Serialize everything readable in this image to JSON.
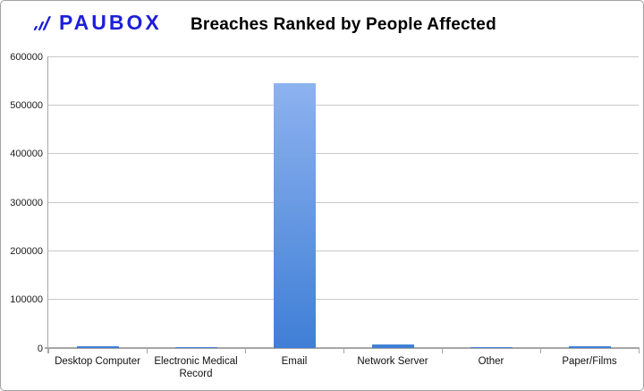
{
  "brand": {
    "logo_text": "PAUBOX",
    "logo_color": "#1c1fd9"
  },
  "chart_data": {
    "type": "bar",
    "title": "Breaches Ranked by People Affected",
    "categories": [
      "Desktop Computer",
      "Electronic Medical Record",
      "Email",
      "Network Server",
      "Other",
      "Paper/Films"
    ],
    "values": [
      3000,
      2500,
      545000,
      7500,
      500,
      4500
    ],
    "xlabel": "",
    "ylabel": "",
    "ylim": [
      0,
      600000
    ],
    "ytick_step": 100000,
    "ytick_labels": [
      "0",
      "100000",
      "200000",
      "300000",
      "400000",
      "500000",
      "600000"
    ],
    "grid": true,
    "legend": "none",
    "bar_color_top": "#95b7f2",
    "bar_color_bottom": "#3f7fd6",
    "gridline_color": "#c9c9c9",
    "axis_color": "#a6a6a6"
  }
}
